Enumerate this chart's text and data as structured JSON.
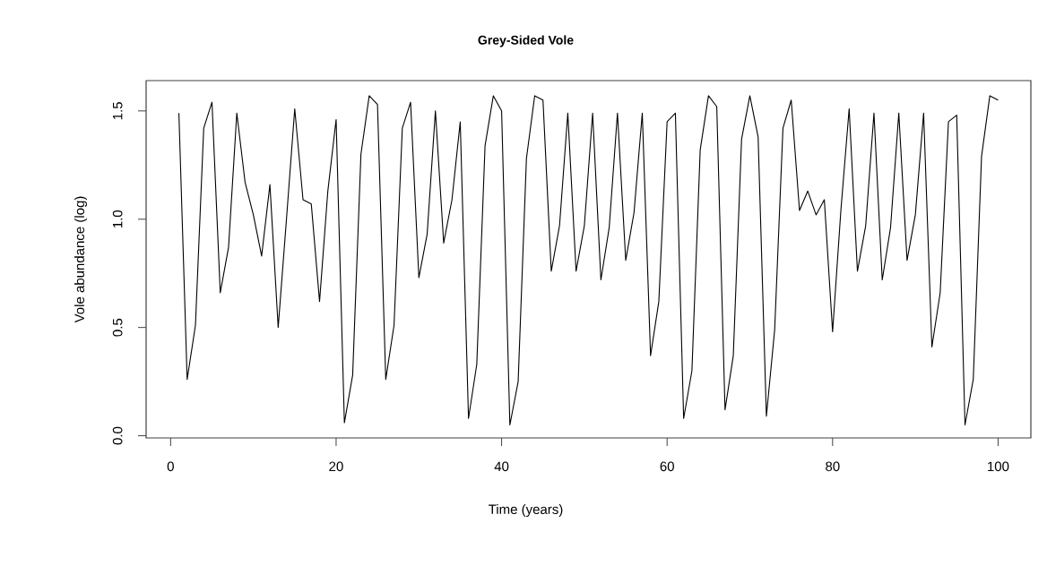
{
  "chart_data": {
    "type": "line",
    "title": "Grey-Sided Vole",
    "xlabel": "Time (years)",
    "ylabel": "Vole abundance (log)",
    "color": "#000000",
    "x": [
      1,
      2,
      3,
      4,
      5,
      6,
      7,
      8,
      9,
      10,
      11,
      12,
      13,
      14,
      15,
      16,
      17,
      18,
      19,
      20,
      21,
      22,
      23,
      24,
      25,
      26,
      27,
      28,
      29,
      30,
      31,
      32,
      33,
      34,
      35,
      36,
      37,
      38,
      39,
      40,
      41,
      42,
      43,
      44,
      45,
      46,
      47,
      48,
      49,
      50,
      51,
      52,
      53,
      54,
      55,
      56,
      57,
      58,
      59,
      60,
      61,
      62,
      63,
      64,
      65,
      66,
      67,
      68,
      69,
      70,
      71,
      72,
      73,
      74,
      75,
      76,
      77,
      78,
      79,
      80,
      81,
      82,
      83,
      84,
      85,
      86,
      87,
      88,
      89,
      90,
      91,
      92,
      93,
      94,
      95,
      96,
      97,
      98,
      99,
      100
    ],
    "values": [
      1.49,
      0.26,
      0.51,
      1.42,
      1.54,
      0.66,
      0.87,
      1.49,
      1.17,
      1.02,
      0.83,
      1.16,
      0.5,
      1.0,
      1.51,
      1.09,
      1.07,
      0.62,
      1.13,
      1.46,
      0.06,
      0.28,
      1.3,
      1.57,
      1.53,
      0.26,
      0.51,
      1.42,
      1.54,
      0.73,
      0.93,
      1.5,
      0.89,
      1.09,
      1.45,
      0.08,
      0.33,
      1.34,
      1.57,
      1.5,
      0.05,
      0.25,
      1.28,
      1.57,
      1.55,
      0.76,
      0.97,
      1.49,
      0.76,
      0.97,
      1.49,
      0.72,
      0.96,
      1.49,
      0.81,
      1.03,
      1.49,
      0.37,
      0.62,
      1.45,
      1.49,
      0.08,
      0.3,
      1.32,
      1.57,
      1.52,
      0.12,
      0.37,
      1.37,
      1.57,
      1.38,
      0.09,
      0.49,
      1.42,
      1.55,
      1.04,
      1.13,
      1.02,
      1.09,
      0.48,
      1.04,
      1.51,
      0.76,
      0.97,
      1.49,
      0.72,
      0.96,
      1.49,
      0.81,
      1.02,
      1.49,
      0.41,
      0.66,
      1.45,
      1.48,
      0.05,
      0.26,
      1.29,
      1.57,
      1.55
    ],
    "xlim": [
      -2.96,
      103.96
    ],
    "ylim": [
      -0.01,
      1.64
    ],
    "xticks": [
      0,
      20,
      40,
      60,
      80,
      100
    ],
    "yticks": [
      {
        "value": 0,
        "label": "0.0"
      },
      {
        "value": 0.5,
        "label": "0.5"
      },
      {
        "value": 1,
        "label": "1.0"
      },
      {
        "value": 1.5,
        "label": "1.5"
      }
    ]
  }
}
